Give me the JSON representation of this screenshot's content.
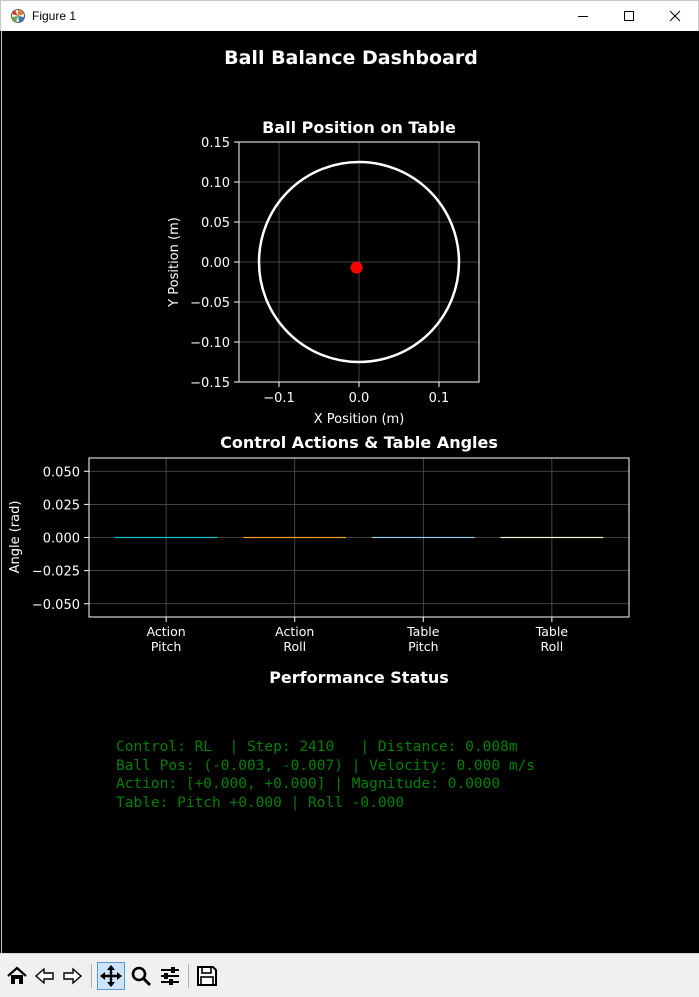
{
  "window": {
    "title": "Figure 1",
    "icons": [
      "matplotlib-icon",
      "minimize-icon",
      "maximize-icon",
      "close-icon"
    ]
  },
  "figure": {
    "suptitle": "Ball Balance Dashboard",
    "background": "#000000",
    "foreground": "#ffffff",
    "grid_color": "#555555"
  },
  "chart_data": [
    {
      "type": "scatter",
      "title": "Ball Position on Table",
      "xlabel": "X Position (m)",
      "ylabel": "Y Position (m)",
      "xlim": [
        -0.15,
        0.15
      ],
      "ylim": [
        -0.15,
        0.15
      ],
      "xticks": [
        -0.1,
        0.0,
        0.1
      ],
      "xtick_labels": [
        "−0.1",
        "0.0",
        "0.1"
      ],
      "yticks": [
        0.15,
        0.1,
        0.05,
        0.0,
        -0.05,
        -0.1,
        -0.15
      ],
      "ytick_labels": [
        "0.15",
        "0.10",
        "0.05",
        "0.00",
        "−0.05",
        "−0.10",
        "−0.15"
      ],
      "grid": true,
      "table_boundary": {
        "shape": "circle",
        "center": [
          0,
          0
        ],
        "radius": 0.125,
        "color": "#ffffff"
      },
      "ball": {
        "x": -0.003,
        "y": -0.007,
        "color": "#ff0000"
      }
    },
    {
      "type": "bar",
      "title": "Control Actions & Table Angles",
      "ylabel": "Angle (rad)",
      "ylim": [
        -0.06,
        0.06
      ],
      "yticks": [
        0.05,
        0.025,
        0.0,
        -0.025,
        -0.05
      ],
      "ytick_labels": [
        "0.050",
        "0.025",
        "0.000",
        "−0.025",
        "−0.050"
      ],
      "grid": true,
      "categories": [
        {
          "line1": "Action",
          "line2": "Pitch"
        },
        {
          "line1": "Action",
          "line2": "Roll"
        },
        {
          "line1": "Table",
          "line2": "Pitch"
        },
        {
          "line1": "Table",
          "line2": "Roll"
        }
      ],
      "values": [
        0.0,
        0.0,
        -0.0,
        -0.0
      ],
      "colors": [
        "#17becf",
        "#ff9a2e",
        "#87ceeb",
        "#f5f5dc"
      ]
    }
  ],
  "status": {
    "title": "Performance Status",
    "color": "#008000",
    "lines": [
      "Control: RL  | Step: 2410   | Distance: 0.008m",
      "Ball Pos: (-0.003, -0.007) | Velocity: 0.000 m/s",
      "Action: [+0.000, +0.000] | Magnitude: 0.0000",
      "Table: Pitch +0.000 | Roll -0.000"
    ]
  },
  "toolbar": {
    "tools": [
      "home-icon",
      "back-icon",
      "forward-icon",
      "pan-icon",
      "zoom-icon",
      "configure-icon",
      "save-icon"
    ],
    "active": "pan-icon"
  }
}
